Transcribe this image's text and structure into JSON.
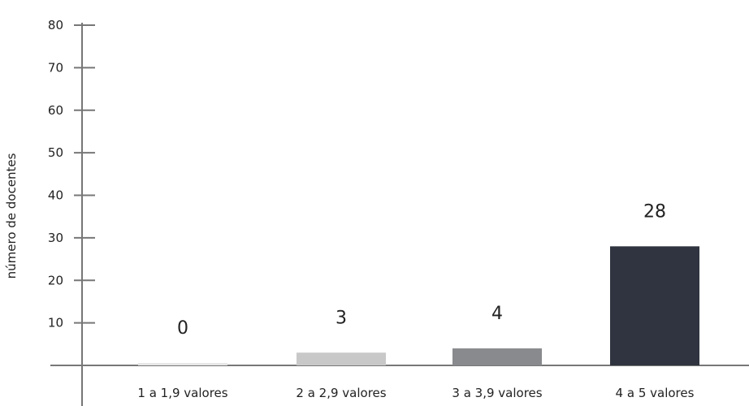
{
  "chart_data": {
    "type": "bar",
    "title": "",
    "xlabel": "",
    "ylabel": "número de docentes",
    "ylim": [
      0,
      80
    ],
    "yticks": [
      10,
      20,
      30,
      40,
      50,
      60,
      70,
      80
    ],
    "categories": [
      "1 a 1,9 valores",
      "2 a 2,9 valores",
      "3 a 3,9 valores",
      "4 a 5 valores"
    ],
    "values": [
      0,
      3,
      4,
      28
    ],
    "value_labels": [
      "0",
      "3",
      "4",
      "28"
    ],
    "bar_colors": [
      "#e6e6e6",
      "#c8c8c8",
      "#888a8d",
      "#2f3440"
    ],
    "grid": false,
    "legend": "none"
  }
}
